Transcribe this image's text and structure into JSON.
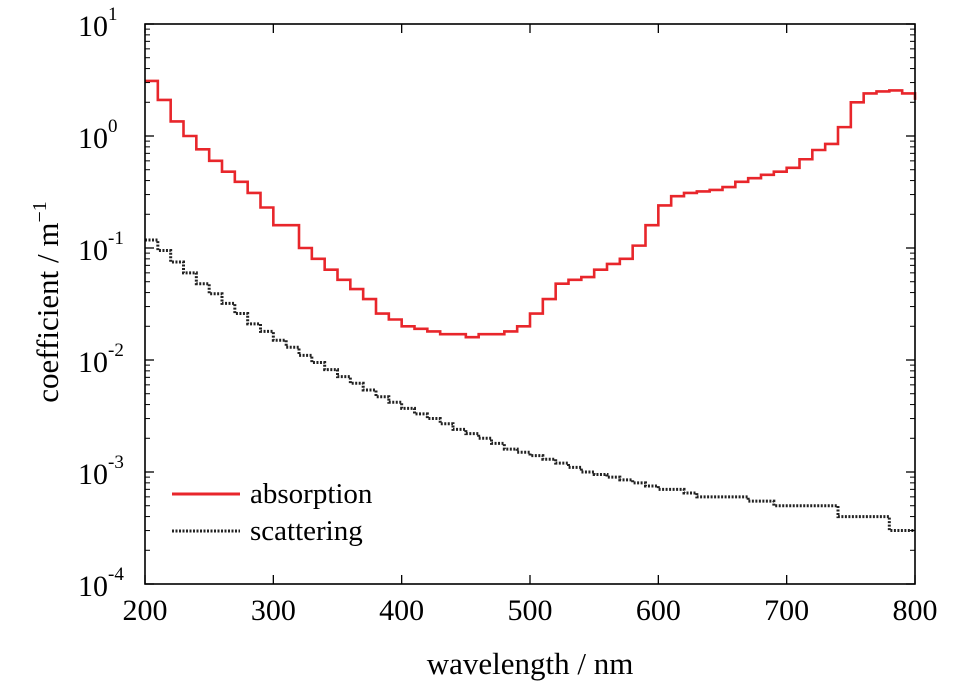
{
  "chart_data": {
    "type": "line",
    "title": "",
    "xlabel": "wavelength / nm",
    "ylabel": "coefficient / m",
    "ylabel_superscript": "−1",
    "xlim": [
      200,
      800
    ],
    "ylim": [
      0.0001,
      10
    ],
    "yscale": "log",
    "grid": false,
    "legend_position": "bottom-left",
    "x_ticks": [
      200,
      300,
      400,
      500,
      600,
      700,
      800
    ],
    "x_tick_labels": [
      "200",
      "300",
      "400",
      "500",
      "600",
      "700",
      "800"
    ],
    "y_ticks": [
      0.0001,
      0.001,
      0.01,
      0.1,
      1,
      10
    ],
    "y_tick_labels": [
      {
        "base": "10",
        "exp": "-4"
      },
      {
        "base": "10",
        "exp": "-3"
      },
      {
        "base": "10",
        "exp": "-2"
      },
      {
        "base": "10",
        "exp": "-1"
      },
      {
        "base": "10",
        "exp": "0"
      },
      {
        "base": "10",
        "exp": "1"
      }
    ],
    "series": [
      {
        "name": "absorption",
        "color": "#e8262b",
        "style": "solid",
        "step": true,
        "x": [
          200,
          210,
          220,
          230,
          240,
          250,
          260,
          270,
          280,
          290,
          300,
          310,
          320,
          330,
          340,
          350,
          360,
          370,
          380,
          390,
          400,
          410,
          420,
          430,
          440,
          450,
          460,
          470,
          480,
          490,
          500,
          510,
          520,
          530,
          540,
          550,
          560,
          570,
          580,
          590,
          600,
          610,
          620,
          630,
          640,
          650,
          660,
          670,
          680,
          690,
          700,
          710,
          720,
          730,
          740,
          750,
          760,
          770,
          780,
          790,
          800
        ],
        "y": [
          3.1,
          2.1,
          1.35,
          1.0,
          0.76,
          0.6,
          0.48,
          0.39,
          0.31,
          0.23,
          0.16,
          0.16,
          0.1,
          0.08,
          0.064,
          0.052,
          0.043,
          0.035,
          0.026,
          0.023,
          0.02,
          0.019,
          0.018,
          0.017,
          0.017,
          0.016,
          0.017,
          0.017,
          0.018,
          0.02,
          0.026,
          0.035,
          0.048,
          0.052,
          0.055,
          0.064,
          0.072,
          0.08,
          0.105,
          0.16,
          0.24,
          0.29,
          0.31,
          0.32,
          0.33,
          0.35,
          0.39,
          0.42,
          0.45,
          0.48,
          0.52,
          0.62,
          0.75,
          0.85,
          1.2,
          2.0,
          2.4,
          2.5,
          2.55,
          2.4,
          2.1
        ]
      },
      {
        "name": "scattering",
        "color": "#222222",
        "style": "dotted",
        "step": true,
        "x": [
          200,
          210,
          220,
          230,
          240,
          250,
          260,
          270,
          280,
          290,
          300,
          310,
          320,
          330,
          340,
          350,
          360,
          370,
          380,
          390,
          400,
          410,
          420,
          430,
          440,
          450,
          460,
          470,
          480,
          490,
          500,
          510,
          520,
          530,
          540,
          550,
          560,
          570,
          580,
          590,
          600,
          610,
          620,
          630,
          640,
          650,
          660,
          670,
          680,
          690,
          700,
          710,
          720,
          730,
          740,
          750,
          760,
          770,
          780,
          790,
          800
        ],
        "y": [
          0.118,
          0.095,
          0.075,
          0.06,
          0.048,
          0.039,
          0.032,
          0.026,
          0.021,
          0.018,
          0.015,
          0.013,
          0.011,
          0.0095,
          0.0082,
          0.0071,
          0.0062,
          0.0054,
          0.0047,
          0.0042,
          0.0037,
          0.0033,
          0.003,
          0.0027,
          0.0024,
          0.0022,
          0.002,
          0.0018,
          0.0016,
          0.0015,
          0.0014,
          0.0013,
          0.0012,
          0.0011,
          0.001,
          0.00095,
          0.0009,
          0.00085,
          0.0008,
          0.00075,
          0.0007,
          0.0007,
          0.00065,
          0.0006,
          0.0006,
          0.0006,
          0.0006,
          0.00055,
          0.00055,
          0.0005,
          0.0005,
          0.0005,
          0.0005,
          0.0005,
          0.0004,
          0.0004,
          0.0004,
          0.0004,
          0.0003,
          0.0003,
          0.0003
        ]
      }
    ]
  }
}
